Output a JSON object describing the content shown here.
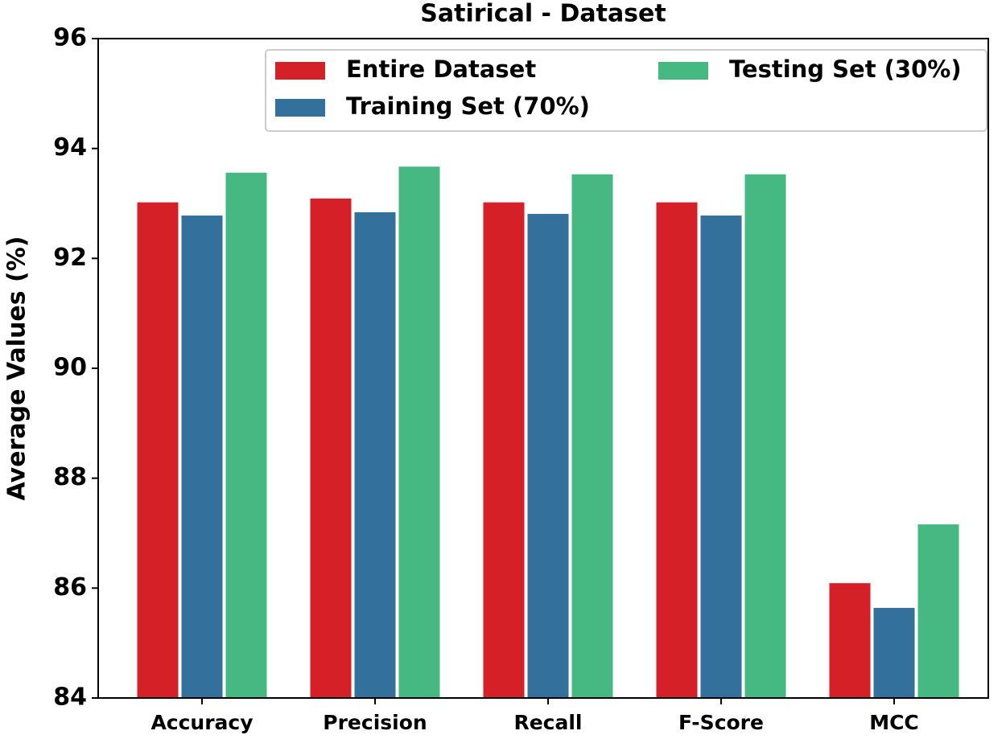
{
  "chart_data": {
    "type": "bar",
    "title": "Satirical - Dataset",
    "y_label": "Average Values (%)",
    "categories": [
      "Accuracy",
      "Precision",
      "Recall",
      "F-Score",
      "MCC"
    ],
    "series": [
      {
        "name": "Entire Dataset",
        "color": "#d62027",
        "values": [
          93.02,
          93.09,
          93.02,
          93.02,
          86.09
        ]
      },
      {
        "name": "Training Set (70%)",
        "color": "#33709c",
        "values": [
          92.78,
          92.84,
          92.81,
          92.78,
          85.64
        ]
      },
      {
        "name": "Testing Set (30%)",
        "color": "#46b982",
        "values": [
          93.56,
          93.67,
          93.53,
          93.53,
          87.16
        ]
      }
    ],
    "ylim": [
      84,
      96
    ],
    "yticks": [
      84,
      86,
      88,
      90,
      92,
      94,
      96
    ],
    "legend": "upper right"
  }
}
